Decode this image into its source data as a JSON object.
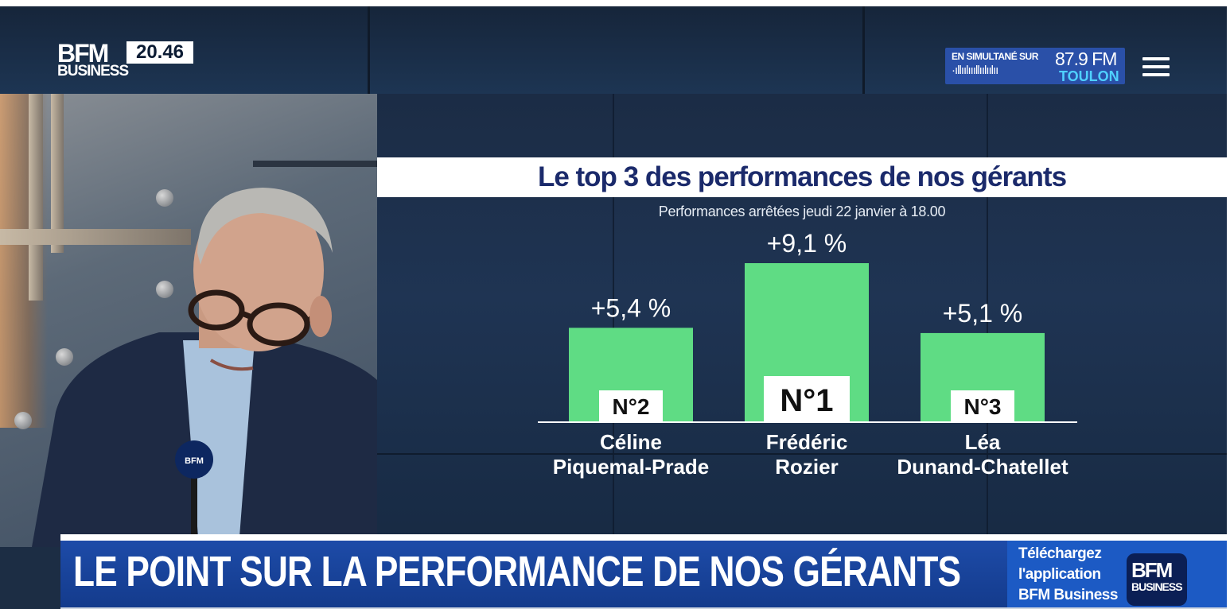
{
  "channel": {
    "logo_top": "BFM",
    "logo_bottom": "BUSINESS",
    "clock": "20.46"
  },
  "radio": {
    "simulcast_label": "EN SIMULTANÉ SUR",
    "frequency": "87.9 FM",
    "city": "TOULON",
    "wave": "·ıllıılıııllıılıılıı"
  },
  "menu_icon": "hamburger-menu-icon",
  "chart_data": {
    "type": "bar",
    "title": "Le top 3 des performances de nos gérants",
    "subtitle": "Performances arrêtées jeudi 22 janvier à 18.00",
    "categories": [
      "Céline Piquemal-Prade",
      "Frédéric Rozier",
      "Léa Dunand-Chatellet"
    ],
    "name_lines": [
      [
        "Céline",
        "Piquemal-Prade"
      ],
      [
        "Frédéric",
        "Rozier"
      ],
      [
        "Léa",
        "Dunand-Chatellet"
      ]
    ],
    "values": [
      5.4,
      9.1,
      5.1
    ],
    "value_labels": [
      "+5,4 %",
      "+9,1 %",
      "+5,1 %"
    ],
    "rank_labels": [
      "N°2",
      "N°1",
      "N°3"
    ],
    "unit": "%",
    "bar_color": "#5fdc84",
    "ylim": [
      0,
      9.1
    ],
    "grid": false,
    "legend": "none"
  },
  "banner": {
    "headline": "LE POINT SUR LA PERFORMANCE DE NOS GÉRANTS"
  },
  "app_promo": {
    "line1": "Téléchargez",
    "line2": "l'application",
    "line3": "BFM Business",
    "logo_top": "BFM",
    "logo_bottom": "BUSINESS"
  },
  "colors": {
    "title_text": "#1b2a6b",
    "banner_bg": "#1d4ba8",
    "radio_bg": "#2a50a8",
    "radio_city": "#4fd0ff"
  }
}
